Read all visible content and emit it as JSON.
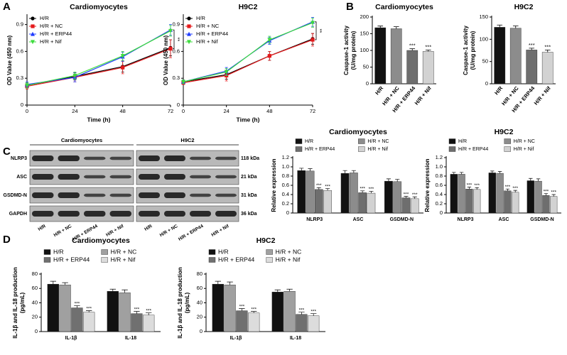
{
  "panels": [
    "A",
    "B",
    "C",
    "D"
  ],
  "blot": {
    "groups": [
      "Cardiomyocytes",
      "H9C2"
    ],
    "rows": [
      {
        "name": "NLRP3",
        "kda": "118 kDa"
      },
      {
        "name": "ASC",
        "kda": "21 kDa"
      },
      {
        "name": "GSDMD-N",
        "kda": "31 kDa"
      },
      {
        "name": "GAPDH",
        "kda": "36 kDa"
      }
    ],
    "lanes": [
      "H/R",
      "H/R + NC",
      "H/R + ERP44",
      "H/R + Nif",
      "H/R",
      "H/R + NC",
      "H/R + ERP44",
      "H/R + Nif"
    ]
  },
  "chart_data": [
    {
      "type": "line",
      "title": "Cardiomyocytes",
      "xlabel": "Time (h)",
      "ylabel": [
        "OD Value (450 nm)"
      ],
      "x": [
        0,
        24,
        48,
        72
      ],
      "xlim": [
        0,
        72
      ],
      "xticks": [
        0,
        24,
        48,
        72
      ],
      "ylim": [
        0,
        1
      ],
      "yticks": [
        0,
        0.3,
        0.6,
        0.9
      ],
      "legend": "upper left",
      "annotation": "**",
      "series": [
        {
          "name": "H/R",
          "color": "#000000",
          "marker": "circle",
          "values": [
            0.22,
            0.32,
            0.43,
            0.64
          ],
          "errors": [
            0.03,
            0.04,
            0.06,
            0.09
          ]
        },
        {
          "name": "H/R + NC",
          "color": "#e41a1c",
          "marker": "square",
          "values": [
            0.21,
            0.31,
            0.42,
            0.63
          ],
          "errors": [
            0.03,
            0.05,
            0.07,
            0.1
          ]
        },
        {
          "name": "H/R + ERP44",
          "color": "#1f3cff",
          "marker": "triangle-up",
          "values": [
            0.23,
            0.31,
            0.54,
            0.84
          ],
          "errors": [
            0.03,
            0.05,
            0.05,
            0.06
          ]
        },
        {
          "name": "H/R + Nif",
          "color": "#3ddc3d",
          "marker": "triangle-down",
          "values": [
            0.22,
            0.33,
            0.55,
            0.83
          ],
          "errors": [
            0.03,
            0.04,
            0.05,
            0.06
          ]
        }
      ]
    },
    {
      "type": "line",
      "title": "H9C2",
      "xlabel": "Time (h)",
      "ylabel": [
        "OD Value (450 nm)"
      ],
      "x": [
        0,
        24,
        48,
        72
      ],
      "xlim": [
        0,
        72
      ],
      "xticks": [
        0,
        24,
        48,
        72
      ],
      "ylim": [
        0,
        1
      ],
      "yticks": [
        0,
        0.3,
        0.6,
        0.9
      ],
      "legend": "upper left",
      "annotation": "**",
      "series": [
        {
          "name": "H/R",
          "color": "#000000",
          "marker": "circle",
          "values": [
            0.26,
            0.34,
            0.55,
            0.74
          ],
          "errors": [
            0.02,
            0.05,
            0.05,
            0.06
          ]
        },
        {
          "name": "H/R + NC",
          "color": "#e41a1c",
          "marker": "square",
          "values": [
            0.25,
            0.33,
            0.55,
            0.73
          ],
          "errors": [
            0.02,
            0.06,
            0.05,
            0.07
          ]
        },
        {
          "name": "H/R + ERP44",
          "color": "#1f3cff",
          "marker": "triangle-up",
          "values": [
            0.26,
            0.38,
            0.72,
            0.93
          ],
          "errors": [
            0.02,
            0.04,
            0.04,
            0.05
          ]
        },
        {
          "name": "H/R + Nif",
          "color": "#3ddc3d",
          "marker": "triangle-down",
          "values": [
            0.26,
            0.37,
            0.73,
            0.92
          ],
          "errors": [
            0.02,
            0.04,
            0.04,
            0.05
          ]
        }
      ]
    },
    {
      "type": "bar",
      "title": "Cardiomyocytes",
      "ylabel": [
        "Caspase-1 activity",
        "(U/mg protein)"
      ],
      "categories": [
        "H/R",
        "H/R + NC",
        "H/R + ERP44",
        "H/R + Nif"
      ],
      "values": [
        168,
        165,
        100,
        97
      ],
      "errors": [
        5,
        6,
        5,
        4
      ],
      "colors": [
        "#111111",
        "#8c8c8c",
        "#6e6e6e",
        "#d2d2d2"
      ],
      "significance": [
        null,
        null,
        "***",
        "***"
      ],
      "ylim": [
        0,
        200
      ],
      "yticks": [
        0,
        50,
        100,
        150,
        200
      ]
    },
    {
      "type": "bar",
      "title": "H9C2",
      "ylabel": [
        "Caspase-1 activity",
        "(U/mg protein)"
      ],
      "categories": [
        "H/R",
        "H/R + NC",
        "H/R + ERP44",
        "H/R + Nif"
      ],
      "values": [
        127,
        125,
        76,
        71
      ],
      "errors": [
        5,
        5,
        4,
        5
      ],
      "colors": [
        "#111111",
        "#8c8c8c",
        "#6e6e6e",
        "#d2d2d2"
      ],
      "significance": [
        null,
        null,
        "***",
        "***"
      ],
      "ylim": [
        0,
        150
      ],
      "yticks": [
        0,
        50,
        100,
        150
      ]
    },
    {
      "type": "bar",
      "title": "Cardiomyocytes",
      "ylabel": [
        "Relative expression"
      ],
      "legend": "top",
      "categories": [
        "NLRP3",
        "ASC",
        "GSDMD-N"
      ],
      "ylim": [
        0,
        1.2
      ],
      "yticks": [
        0,
        0.2,
        0.4,
        0.6,
        0.8,
        {
          "value": 1,
          "label": "1.0"
        },
        1.2
      ],
      "series": [
        {
          "name": "H/R",
          "color": "#111111",
          "values": [
            0.92,
            0.86,
            0.69
          ],
          "errors": [
            0.05,
            0.06,
            0.05
          ],
          "significance": [
            null,
            null,
            null
          ]
        },
        {
          "name": "H/R + NC",
          "color": "#8c8c8c",
          "values": [
            0.91,
            0.87,
            0.68
          ],
          "errors": [
            0.05,
            0.05,
            0.05
          ],
          "significance": [
            null,
            null,
            null
          ]
        },
        {
          "name": "H/R + ERP44",
          "color": "#6e6e6e",
          "values": [
            0.51,
            0.44,
            0.33
          ],
          "errors": [
            0.04,
            0.04,
            0.03
          ],
          "significance": [
            "***",
            "***",
            "***"
          ]
        },
        {
          "name": "H/R + Nif",
          "color": "#d2d2d2",
          "values": [
            0.49,
            0.43,
            0.31
          ],
          "errors": [
            0.04,
            0.04,
            0.04
          ],
          "significance": [
            "***",
            "***",
            "***"
          ]
        }
      ]
    },
    {
      "type": "bar",
      "title": "H9C2",
      "ylabel": [
        "Relative expression"
      ],
      "legend": "top",
      "categories": [
        "NLRP3",
        "ASC",
        "GSDMD-N"
      ],
      "ylim": [
        0,
        1.2
      ],
      "yticks": [
        0,
        0.2,
        0.4,
        0.6,
        0.8,
        {
          "value": 1,
          "label": "1.0"
        },
        1.2
      ],
      "series": [
        {
          "name": "H/R",
          "color": "#111111",
          "values": [
            0.84,
            0.87,
            0.7
          ],
          "errors": [
            0.04,
            0.04,
            0.05
          ],
          "significance": [
            null,
            null,
            null
          ]
        },
        {
          "name": "H/R + NC",
          "color": "#8c8c8c",
          "values": [
            0.84,
            0.86,
            0.69
          ],
          "errors": [
            0.04,
            0.04,
            0.05
          ],
          "significance": [
            null,
            null,
            null
          ]
        },
        {
          "name": "H/R + ERP44",
          "color": "#6e6e6e",
          "values": [
            0.52,
            0.48,
            0.38
          ],
          "errors": [
            0.04,
            0.04,
            0.04
          ],
          "significance": [
            "***",
            "***",
            "***"
          ]
        },
        {
          "name": "H/R + Nif",
          "color": "#d2d2d2",
          "values": [
            0.51,
            0.45,
            0.36
          ],
          "errors": [
            0.04,
            0.04,
            0.04
          ],
          "significance": [
            "***",
            "***",
            "***"
          ]
        }
      ]
    },
    {
      "type": "bar",
      "title": "Cardiomyocytes",
      "ylabel": [
        "IL-1β and IL-18 production",
        "(pg/mL)"
      ],
      "legend": "top",
      "categories": [
        "IL-1β",
        "IL-18"
      ],
      "ylim": [
        0,
        80
      ],
      "yticks": [
        0,
        20,
        40,
        60,
        80
      ],
      "series": [
        {
          "name": "H/R",
          "color": "#111111",
          "values": [
            66,
            56
          ],
          "errors": [
            4,
            3
          ],
          "significance": [
            null,
            null
          ]
        },
        {
          "name": "H/R + NC",
          "color": "#a0a0a0",
          "values": [
            65,
            54
          ],
          "errors": [
            3,
            4
          ],
          "significance": [
            null,
            null
          ]
        },
        {
          "name": "H/R + ERP44",
          "color": "#707070",
          "values": [
            33,
            25
          ],
          "errors": [
            3,
            3
          ],
          "significance": [
            "***",
            "***"
          ]
        },
        {
          "name": "H/R + Nif",
          "color": "#dcdcdc",
          "values": [
            27,
            23
          ],
          "errors": [
            2,
            3
          ],
          "significance": [
            "***",
            "***"
          ]
        }
      ]
    },
    {
      "type": "bar",
      "title": "H9C2",
      "ylabel": [
        "IL-1β and IL-18 production",
        "(pg/mL)"
      ],
      "legend": "top",
      "categories": [
        "IL-1β",
        "IL-18"
      ],
      "ylim": [
        0,
        80
      ],
      "yticks": [
        0,
        20,
        40,
        60,
        80
      ],
      "series": [
        {
          "name": "H/R",
          "color": "#111111",
          "values": [
            66,
            55
          ],
          "errors": [
            4,
            3
          ],
          "significance": [
            null,
            null
          ]
        },
        {
          "name": "H/R + NC",
          "color": "#a0a0a0",
          "values": [
            65,
            56
          ],
          "errors": [
            4,
            3
          ],
          "significance": [
            null,
            null
          ]
        },
        {
          "name": "H/R + ERP44",
          "color": "#707070",
          "values": [
            29,
            24
          ],
          "errors": [
            3,
            3
          ],
          "significance": [
            "***",
            "***"
          ]
        },
        {
          "name": "H/R + Nif",
          "color": "#dcdcdc",
          "values": [
            26,
            22
          ],
          "errors": [
            2,
            3
          ],
          "significance": [
            "***",
            "***"
          ]
        }
      ]
    }
  ]
}
